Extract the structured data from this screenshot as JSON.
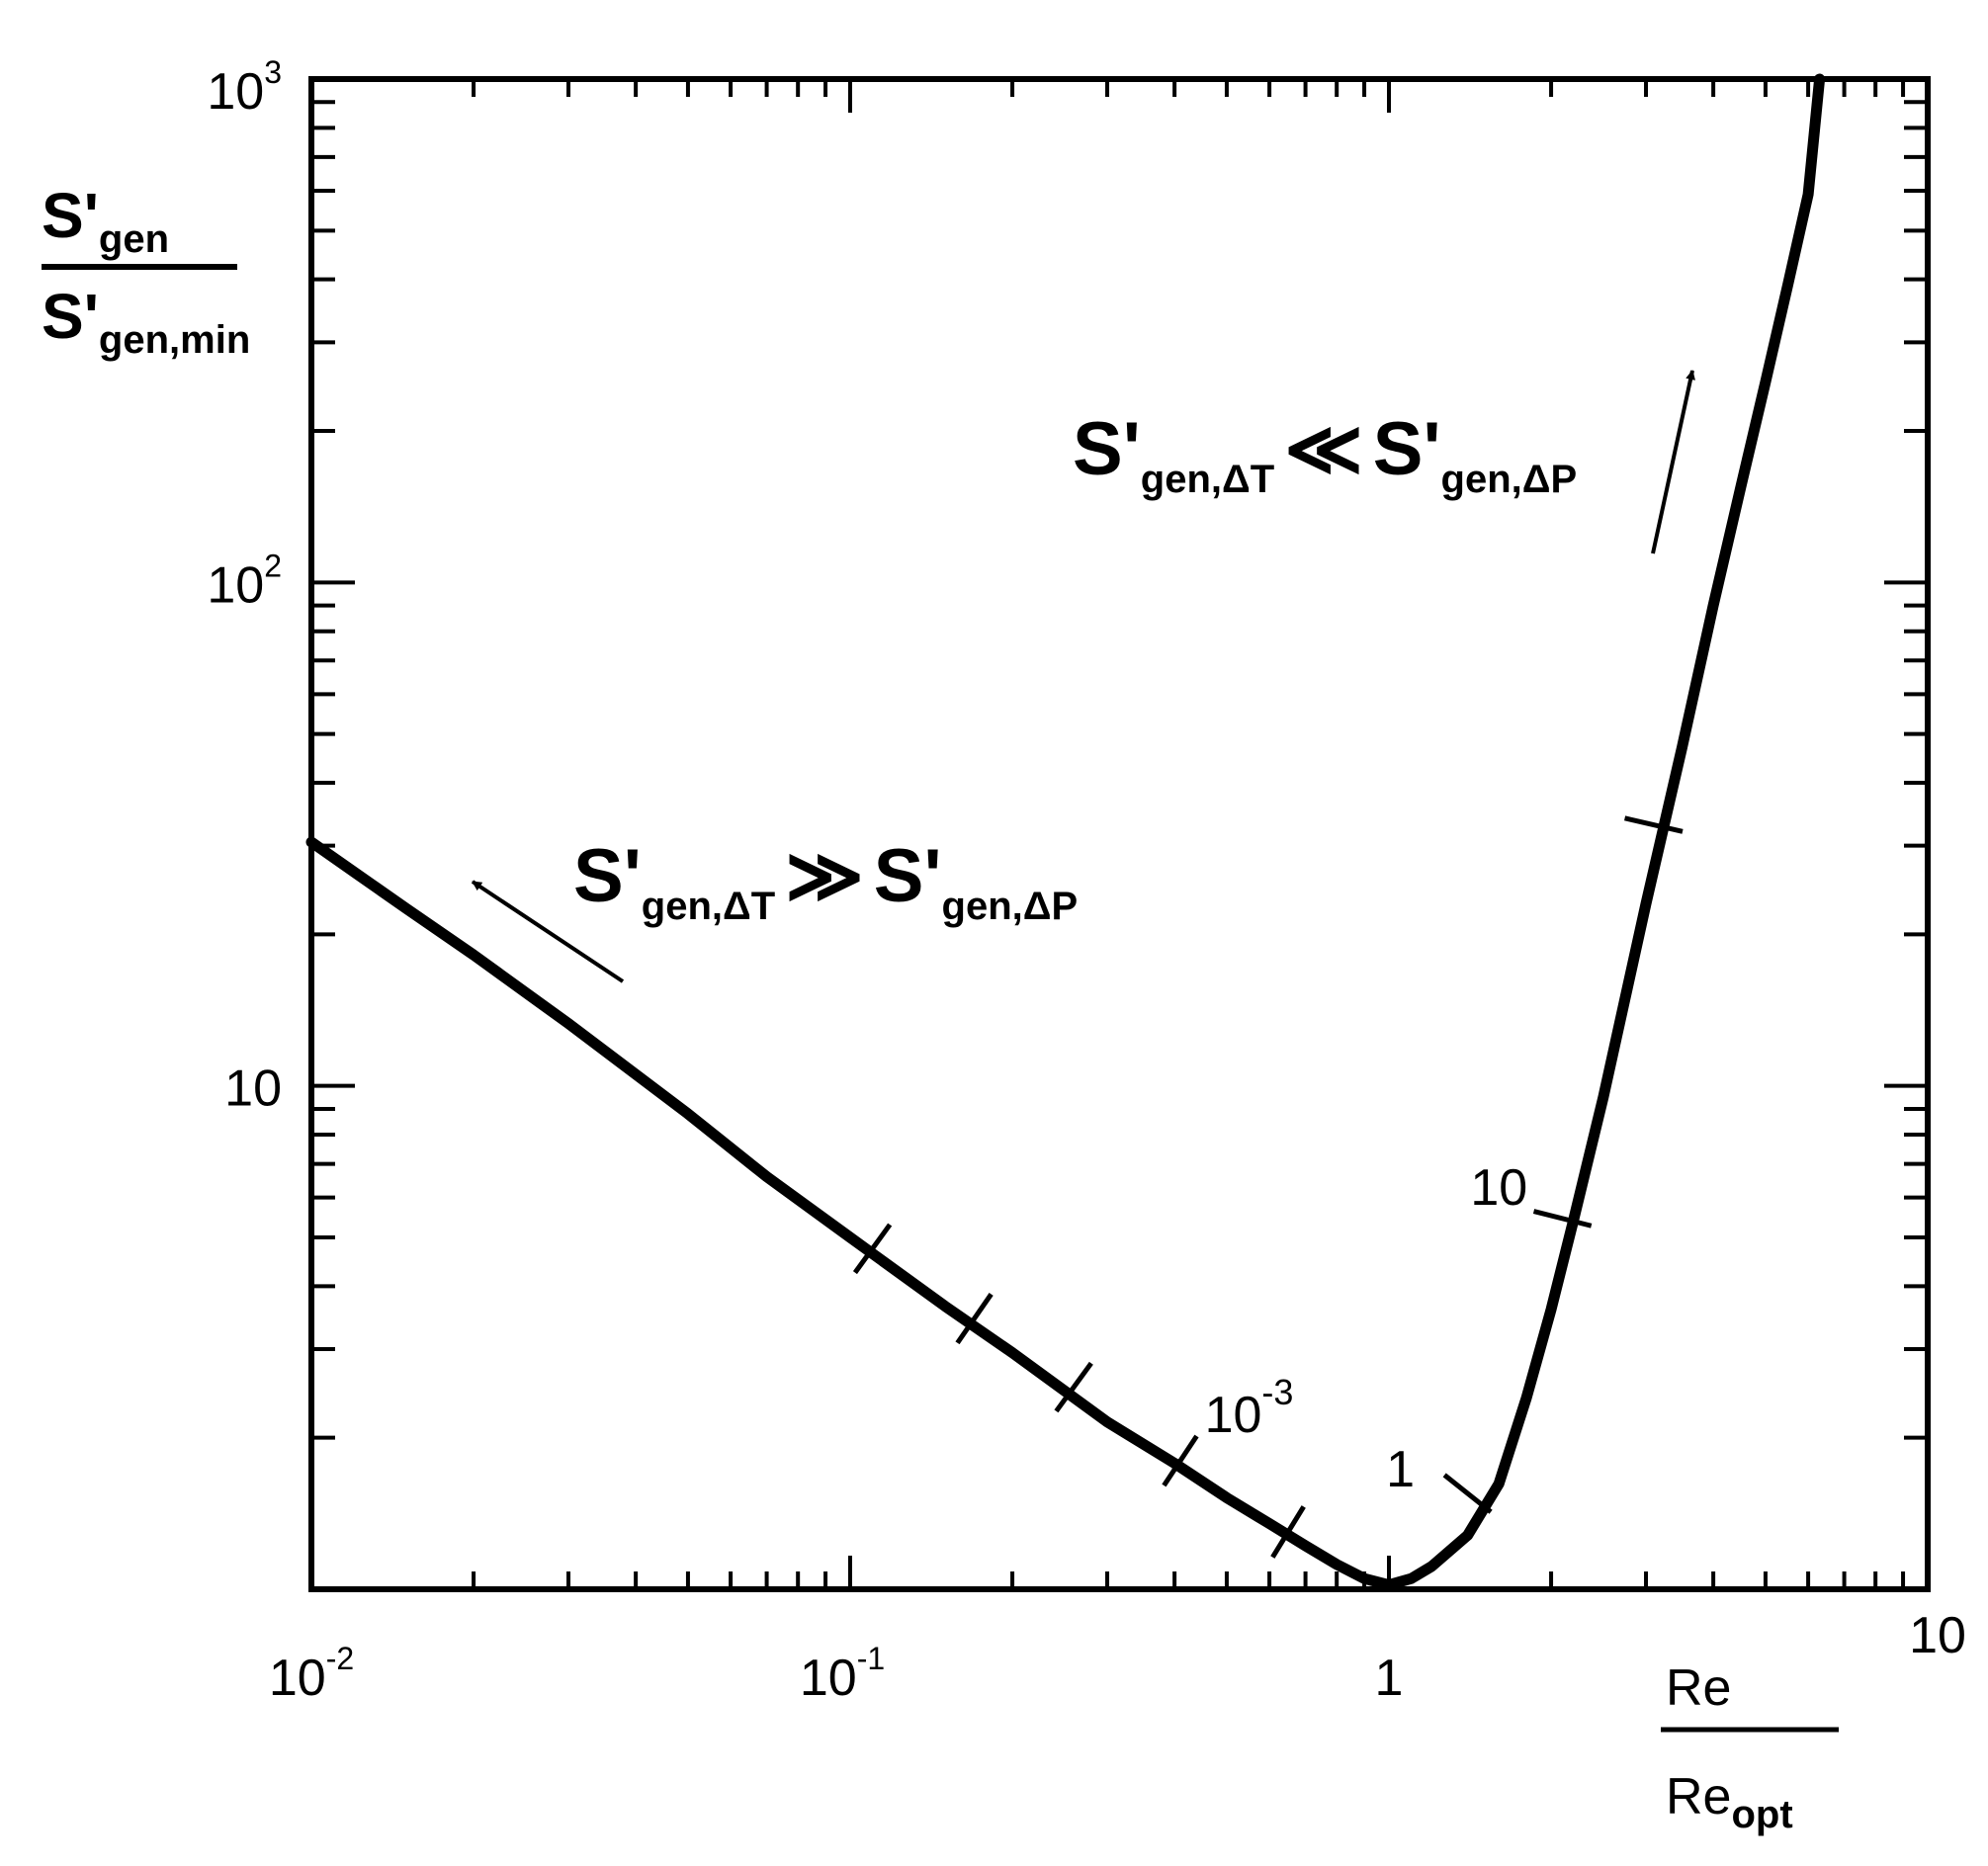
{
  "chart_data": {
    "type": "line",
    "title": "",
    "x_scale": "log",
    "y_scale": "log",
    "xlim": [
      0.01,
      10
    ],
    "ylim": [
      1,
      1000
    ],
    "grid": false,
    "xlabel": {
      "numerator": "Re",
      "denominator_base": "Re",
      "denominator_sub": "opt"
    },
    "ylabel": {
      "numerator_base": "S'",
      "numerator_sub": "gen",
      "denominator_base": "S'",
      "denominator_sub": "gen,min"
    },
    "x_ticks": [
      {
        "value": 0.01,
        "base": "10",
        "exp": "-2"
      },
      {
        "value": 0.1,
        "base": "10",
        "exp": "-1"
      },
      {
        "value": 1,
        "base": "1",
        "exp": ""
      },
      {
        "value": 10,
        "base": "10",
        "exp": ""
      }
    ],
    "y_ticks": [
      {
        "value": 10,
        "base": "10",
        "exp": ""
      },
      {
        "value": 100,
        "base": "10",
        "exp": "2"
      },
      {
        "value": 1000,
        "base": "10",
        "exp": "3"
      }
    ],
    "series": [
      {
        "x": [
          0.01,
          0.015,
          0.02,
          0.03,
          0.05,
          0.07,
          0.1,
          0.15,
          0.2,
          0.3,
          0.4,
          0.5,
          0.6,
          0.7,
          0.8,
          0.9,
          1.0,
          1.1,
          1.2,
          1.4,
          1.6,
          1.8,
          2.0,
          2.2,
          2.5,
          3.0,
          3.5,
          4.0,
          4.5,
          5.0,
          5.5,
          6.0,
          6.3
        ],
        "y": [
          30.5,
          22.5,
          18.2,
          13.3,
          8.8,
          6.6,
          5.0,
          3.65,
          2.95,
          2.15,
          1.78,
          1.52,
          1.35,
          1.22,
          1.12,
          1.05,
          1.02,
          1.05,
          1.11,
          1.28,
          1.62,
          2.4,
          3.6,
          5.4,
          9.5,
          23.0,
          47.0,
          90.0,
          155.0,
          250.0,
          390.0,
          590.0,
          1000.0
        ]
      }
    ],
    "markers": [
      {
        "x": 0.11,
        "y": 4.75
      },
      {
        "x": 0.17,
        "y": 3.45
      },
      {
        "x": 0.26,
        "y": 2.52
      },
      {
        "x": 0.41,
        "y": 1.8
      },
      {
        "x": 0.65,
        "y": 1.3
      },
      {
        "x": 1.4,
        "y": 1.55
      },
      {
        "x": 2.1,
        "y": 5.45
      },
      {
        "x": 3.1,
        "y": 33.0
      }
    ],
    "annotations": [
      {
        "base": "10",
        "exp": "-3",
        "x": 0.55,
        "y": 2.05
      },
      {
        "base": "1",
        "exp": "",
        "x": 1.05,
        "y": 1.6
      },
      {
        "base": "10",
        "exp": "",
        "x": 1.6,
        "y": 5.8
      }
    ],
    "regime_labels": {
      "left": {
        "lhs_sub": "gen,ΔT",
        "rel": "≫",
        "rhs_sub": "gen,ΔP",
        "base": "S'"
      },
      "right": {
        "lhs_sub": "gen,ΔT",
        "rel": "≪",
        "rhs_sub": "gen,ΔP",
        "base": "S'"
      }
    }
  }
}
